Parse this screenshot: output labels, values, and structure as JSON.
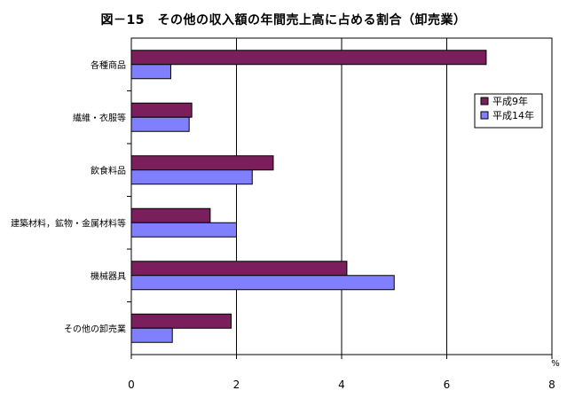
{
  "chart_data": {
    "type": "bar",
    "orientation": "horizontal",
    "title": "図－15　その他の収入額の年間売上高に占める割合（卸売業）",
    "xlabel": "",
    "ylabel": "",
    "unit": "%",
    "categories": [
      "各種商品",
      "繊維・衣服等",
      "飲食料品",
      "建築材料，鉱物・金属材料等",
      "機械器具",
      "その他の卸売業"
    ],
    "series": [
      {
        "name": "平成9年",
        "color": "#7a1f5c",
        "values": [
          6.75,
          1.15,
          2.7,
          1.5,
          4.1,
          1.9
        ]
      },
      {
        "name": "平成14年",
        "color": "#8080ff",
        "values": [
          0.75,
          1.1,
          2.3,
          2.0,
          5.0,
          0.78
        ]
      }
    ],
    "xlim": [
      0,
      8
    ],
    "xticks": [
      0,
      2,
      4,
      6,
      8
    ],
    "grid": true,
    "legend_position": "right"
  }
}
